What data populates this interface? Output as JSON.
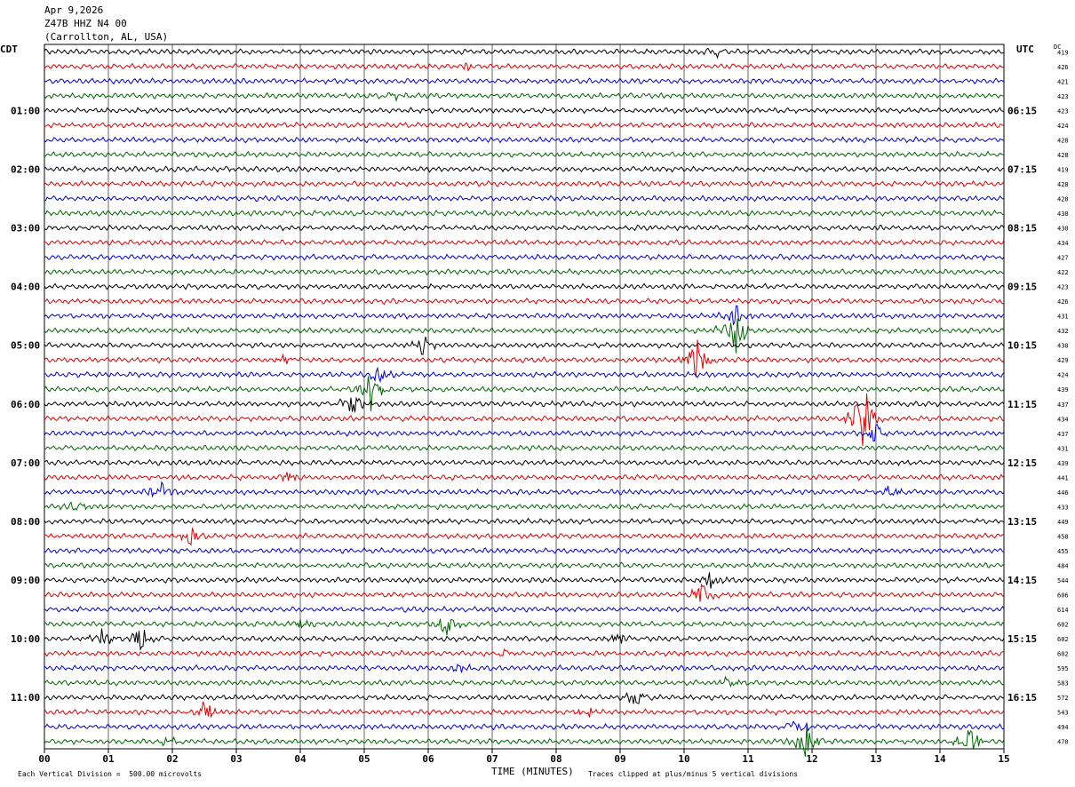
{
  "header": {
    "date": "Apr 9,2026",
    "station": "Z47B HHZ N4 00",
    "location": "(Carrollton, AL, USA)"
  },
  "left_tz": "CDT",
  "right_tz": "UTC",
  "dc_label": "DC",
  "footer": {
    "scale_note": "Each Vertical Division =  500.00 microvolts",
    "clip_note": "Traces clipped at plus/minus 5 vertical divisions"
  },
  "chart_data": {
    "type": "line",
    "title": "Z47B HHZ N4 00 (Carrollton, AL, USA)",
    "xlabel": "TIME (MINUTES)",
    "x_ticks": [
      "00",
      "01",
      "02",
      "03",
      "04",
      "05",
      "06",
      "07",
      "08",
      "09",
      "10",
      "11",
      "12",
      "13",
      "14",
      "15"
    ],
    "xlim": [
      0,
      15
    ],
    "left_hour_labels": [
      "01:00",
      "02:00",
      "03:00",
      "04:00",
      "05:00",
      "06:00",
      "07:00",
      "08:00",
      "09:00",
      "10:00",
      "11:00"
    ],
    "right_hour_labels": [
      "06:15",
      "07:15",
      "08:15",
      "09:15",
      "10:15",
      "11:15",
      "12:15",
      "13:15",
      "14:15",
      "15:15",
      "16:15"
    ],
    "trace_colors": [
      "#000000",
      "#dd0000",
      "#0000cc",
      "#006600"
    ],
    "dc_offsets": [
      419,
      426,
      421,
      423,
      423,
      424,
      428,
      428,
      419,
      428,
      428,
      430,
      430,
      434,
      427,
      422,
      423,
      426,
      431,
      432,
      430,
      429,
      424,
      439,
      437,
      434,
      437,
      431,
      439,
      441,
      446,
      433,
      449,
      458,
      455,
      484,
      544,
      606,
      614,
      602,
      602,
      602,
      595,
      583,
      572,
      543,
      494,
      470
    ],
    "events": [
      {
        "trace": 0,
        "minute": 10.5,
        "amplitude": 0.4
      },
      {
        "trace": 1,
        "minute": 6.6,
        "amplitude": 0.35
      },
      {
        "trace": 3,
        "minute": 5.5,
        "amplitude": 0.35
      },
      {
        "trace": 18,
        "minute": 10.8,
        "amplitude": 1.0
      },
      {
        "trace": 19,
        "minute": 10.8,
        "amplitude": 2.4
      },
      {
        "trace": 20,
        "minute": 5.9,
        "amplitude": 0.8
      },
      {
        "trace": 21,
        "minute": 10.2,
        "amplitude": 1.8
      },
      {
        "trace": 21,
        "minute": 3.8,
        "amplitude": 0.5
      },
      {
        "trace": 22,
        "minute": 5.2,
        "amplitude": 0.8
      },
      {
        "trace": 23,
        "minute": 5.1,
        "amplitude": 1.6
      },
      {
        "trace": 24,
        "minute": 4.8,
        "amplitude": 1.2
      },
      {
        "trace": 25,
        "minute": 12.8,
        "amplitude": 3.0
      },
      {
        "trace": 26,
        "minute": 13.0,
        "amplitude": 1.0
      },
      {
        "trace": 29,
        "minute": 3.8,
        "amplitude": 0.5
      },
      {
        "trace": 30,
        "minute": 1.8,
        "amplitude": 0.9
      },
      {
        "trace": 30,
        "minute": 13.2,
        "amplitude": 0.8
      },
      {
        "trace": 31,
        "minute": 0.5,
        "amplitude": 0.5
      },
      {
        "trace": 33,
        "minute": 2.3,
        "amplitude": 1.0
      },
      {
        "trace": 36,
        "minute": 10.4,
        "amplitude": 0.7
      },
      {
        "trace": 37,
        "minute": 10.3,
        "amplitude": 1.2
      },
      {
        "trace": 39,
        "minute": 6.3,
        "amplitude": 0.9
      },
      {
        "trace": 39,
        "minute": 4.0,
        "amplitude": 0.5
      },
      {
        "trace": 40,
        "minute": 1.5,
        "amplitude": 1.0
      },
      {
        "trace": 40,
        "minute": 0.9,
        "amplitude": 0.7
      },
      {
        "trace": 40,
        "minute": 9.0,
        "amplitude": 0.5
      },
      {
        "trace": 41,
        "minute": 7.2,
        "amplitude": 0.6
      },
      {
        "trace": 42,
        "minute": 6.5,
        "amplitude": 0.5
      },
      {
        "trace": 43,
        "minute": 10.7,
        "amplitude": 0.5
      },
      {
        "trace": 44,
        "minute": 9.2,
        "amplitude": 0.9
      },
      {
        "trace": 45,
        "minute": 2.5,
        "amplitude": 1.0
      },
      {
        "trace": 45,
        "minute": 8.5,
        "amplitude": 0.5
      },
      {
        "trace": 46,
        "minute": 11.8,
        "amplitude": 0.7
      },
      {
        "trace": 47,
        "minute": 11.9,
        "amplitude": 1.5
      },
      {
        "trace": 47,
        "minute": 14.5,
        "amplitude": 1.5
      },
      {
        "trace": 47,
        "minute": 1.9,
        "amplitude": 0.5
      }
    ]
  }
}
